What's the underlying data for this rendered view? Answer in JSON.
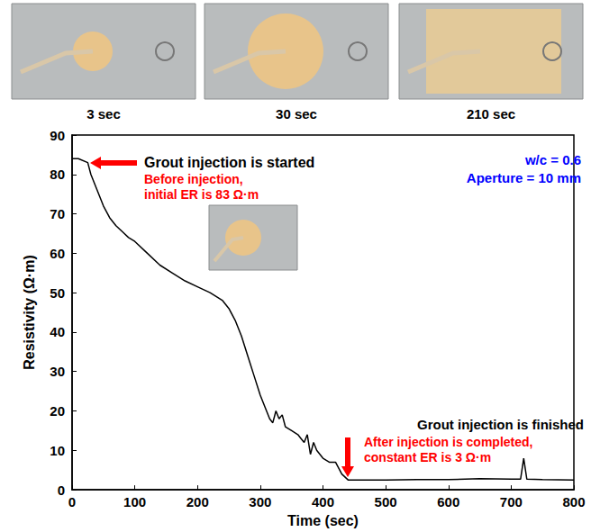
{
  "chart_data": {
    "type": "line",
    "x_label": "Time (sec)",
    "y_label": "Resistivity (Ω·m)",
    "xlim": [
      0,
      800
    ],
    "xticks": [
      0,
      100,
      200,
      300,
      400,
      500,
      600,
      700,
      800
    ],
    "ylim": [
      0,
      90
    ],
    "yticks": [
      0,
      10,
      20,
      30,
      40,
      50,
      60,
      70,
      80,
      90
    ],
    "grid": false,
    "tick_labels": true,
    "series": [
      {
        "name": "Resistivity",
        "color": "#000000",
        "x": [
          0,
          10,
          25,
          30,
          40,
          50,
          60,
          70,
          80,
          90,
          100,
          120,
          140,
          160,
          180,
          200,
          220,
          240,
          250,
          260,
          270,
          280,
          290,
          300,
          310,
          315,
          320,
          325,
          330,
          335,
          340,
          350,
          360,
          365,
          370,
          375,
          380,
          385,
          390,
          400,
          410,
          420,
          430,
          440,
          450,
          500,
          550,
          600,
          650,
          700,
          715,
          720,
          725,
          750,
          800
        ],
        "values": [
          84,
          84,
          83,
          80,
          76,
          72,
          69,
          67,
          65.5,
          64,
          63,
          60,
          57,
          55,
          53,
          51.5,
          50,
          48,
          46,
          43,
          39,
          34,
          29,
          24,
          20,
          18,
          17,
          20,
          18,
          19,
          16,
          15,
          14,
          13,
          12,
          14,
          9,
          12,
          10,
          8,
          7,
          7,
          4,
          2.5,
          2.5,
          2.5,
          2.6,
          2.6,
          2.8,
          2.7,
          2.7,
          8,
          2.7,
          2.6,
          2.5
        ]
      }
    ],
    "annotations": [
      {
        "lines": [
          "Grout injection is started"
        ],
        "color": "#000000"
      },
      {
        "lines": [
          "Before injection,",
          "initial ER is 83 Ω·m"
        ],
        "color": "#ff0000"
      },
      {
        "lines": [
          "w/c = 0.6",
          "Aperture = 10 mm"
        ],
        "color": "#0000ff"
      },
      {
        "lines": [
          "Grout injection is finished"
        ],
        "color": "#000000"
      },
      {
        "lines": [
          "After injection is completed,",
          "constant ER is 3 Ω·m"
        ],
        "color": "#ff0000"
      }
    ]
  },
  "photos": {
    "captions": [
      "3 sec",
      "30 sec",
      "210 sec"
    ]
  }
}
